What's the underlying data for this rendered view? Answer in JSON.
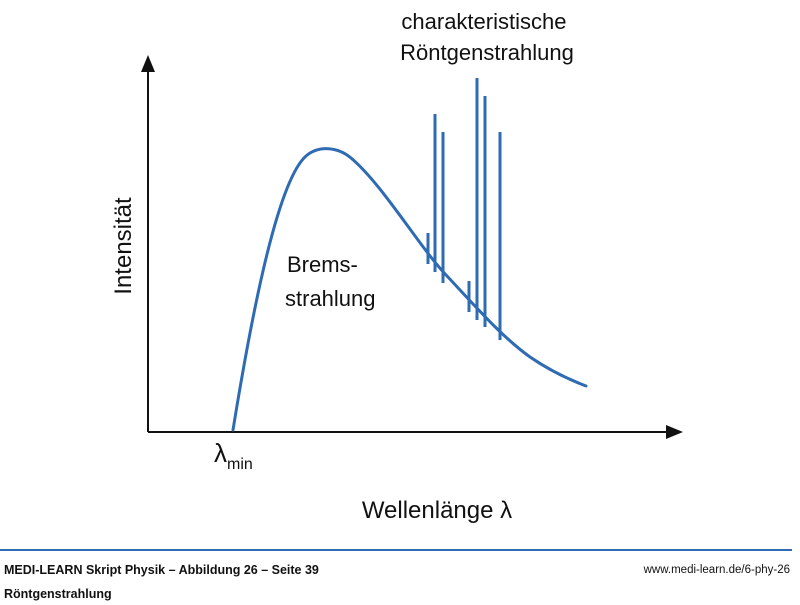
{
  "figure": {
    "axes": {
      "x_label": "Wellenlänge λ",
      "y_label": "Intensität",
      "x_marker": {
        "symbol": "λ",
        "subscript": "min"
      }
    },
    "curve_label": {
      "line1": "Brems-",
      "line2": "strahlung"
    },
    "lines_label": {
      "line1": "charakteristische",
      "line2": "Röntgenstrahlung"
    },
    "colors": {
      "curve": "#2e6bb3",
      "axes": "#111111",
      "text": "#111111"
    }
  },
  "footer": {
    "title": "MEDI-LEARN Skript Physik – Abbildung 26 – Seite 39",
    "subtitle": "Röntgenstrahlung",
    "url": "www.medi-learn.de/6-phy-26"
  }
}
